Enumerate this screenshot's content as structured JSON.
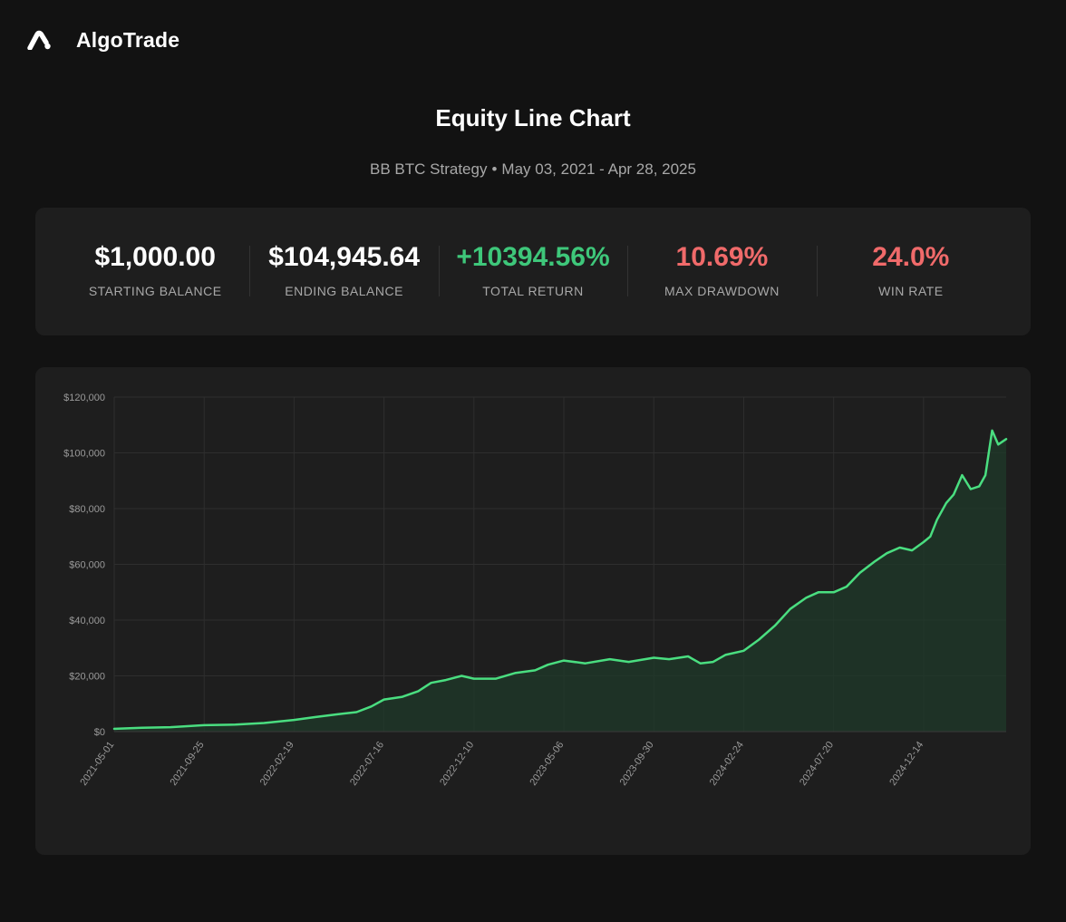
{
  "header": {
    "brand": "AlgoTrade",
    "logo_icon": "algotrade-logo-icon"
  },
  "page": {
    "title": "Equity Line Chart",
    "strategy": "BB BTC Strategy",
    "separator": "•",
    "date_range": "May 03, 2021 - Apr 28, 2025"
  },
  "stats": [
    {
      "value": "$1,000.00",
      "label": "STARTING BALANCE",
      "color": "#ffffff"
    },
    {
      "value": "$104,945.64",
      "label": "ENDING BALANCE",
      "color": "#ffffff"
    },
    {
      "value": "+10394.56%",
      "label": "TOTAL RETURN",
      "color": "#3ec77a"
    },
    {
      "value": "10.69%",
      "label": "MAX DRAWDOWN",
      "color": "#f06a6a"
    },
    {
      "value": "24.0%",
      "label": "WIN RATE",
      "color": "#f06a6a"
    }
  ],
  "colors": {
    "line": "#4ade80",
    "fill": "#1f3a29",
    "grid": "#2e2e2e",
    "card": "#1e1e1e",
    "background": "#121212"
  },
  "chart_data": {
    "type": "area",
    "title": "",
    "xlabel": "",
    "ylabel": "",
    "x_range": [
      "2021-05-01",
      "2025-04-28"
    ],
    "ylim": [
      0,
      120000
    ],
    "y_ticks": [
      "$0",
      "$20,000",
      "$40,000",
      "$60,000",
      "$80,000",
      "$100,000",
      "$120,000"
    ],
    "y_tick_values": [
      0,
      20000,
      40000,
      60000,
      80000,
      100000,
      120000
    ],
    "x_ticks": [
      "2021-05-01",
      "2021-09-25",
      "2022-02-19",
      "2022-07-16",
      "2022-12-10",
      "2023-05-06",
      "2023-09-30",
      "2024-02-24",
      "2024-07-20",
      "2024-12-14"
    ],
    "grid": true,
    "legend": "none",
    "series": [
      {
        "x": [
          "2021-05-01",
          "2021-06-15",
          "2021-08-01",
          "2021-09-25",
          "2021-11-15",
          "2022-01-01",
          "2022-02-19",
          "2022-03-25",
          "2022-05-01",
          "2022-06-01",
          "2022-06-25",
          "2022-07-16",
          "2022-08-15",
          "2022-09-10",
          "2022-10-01",
          "2022-10-25",
          "2022-11-20",
          "2022-12-10",
          "2023-01-15",
          "2023-02-15",
          "2023-03-20",
          "2023-04-10",
          "2023-05-06",
          "2023-06-10",
          "2023-07-20",
          "2023-08-20",
          "2023-09-30",
          "2023-10-25",
          "2023-11-25",
          "2023-12-15",
          "2024-01-05",
          "2024-01-25",
          "2024-02-24",
          "2024-03-20",
          "2024-04-15",
          "2024-05-10",
          "2024-06-05",
          "2024-06-25",
          "2024-07-20",
          "2024-08-10",
          "2024-09-01",
          "2024-09-25",
          "2024-10-15",
          "2024-11-05",
          "2024-11-25",
          "2024-12-14",
          "2024-12-25",
          "2025-01-05",
          "2025-01-20",
          "2025-02-01",
          "2025-02-15",
          "2025-03-01",
          "2025-03-15",
          "2025-03-25",
          "2025-04-05",
          "2025-04-15",
          "2025-04-28"
        ],
        "values": [
          1000,
          1400,
          1600,
          2300,
          2500,
          3100,
          4200,
          5200,
          6200,
          7000,
          9000,
          11500,
          12500,
          14500,
          17500,
          18500,
          20000,
          19000,
          19000,
          21000,
          22000,
          24000,
          25500,
          24500,
          26000,
          25000,
          26500,
          26000,
          27000,
          24500,
          25000,
          27500,
          29000,
          33000,
          38000,
          44000,
          48000,
          50000,
          50000,
          52000,
          57000,
          61000,
          64000,
          66000,
          65000,
          68000,
          70000,
          76000,
          82000,
          85000,
          92000,
          87000,
          88000,
          92000,
          108000,
          103000,
          104946
        ]
      }
    ]
  }
}
